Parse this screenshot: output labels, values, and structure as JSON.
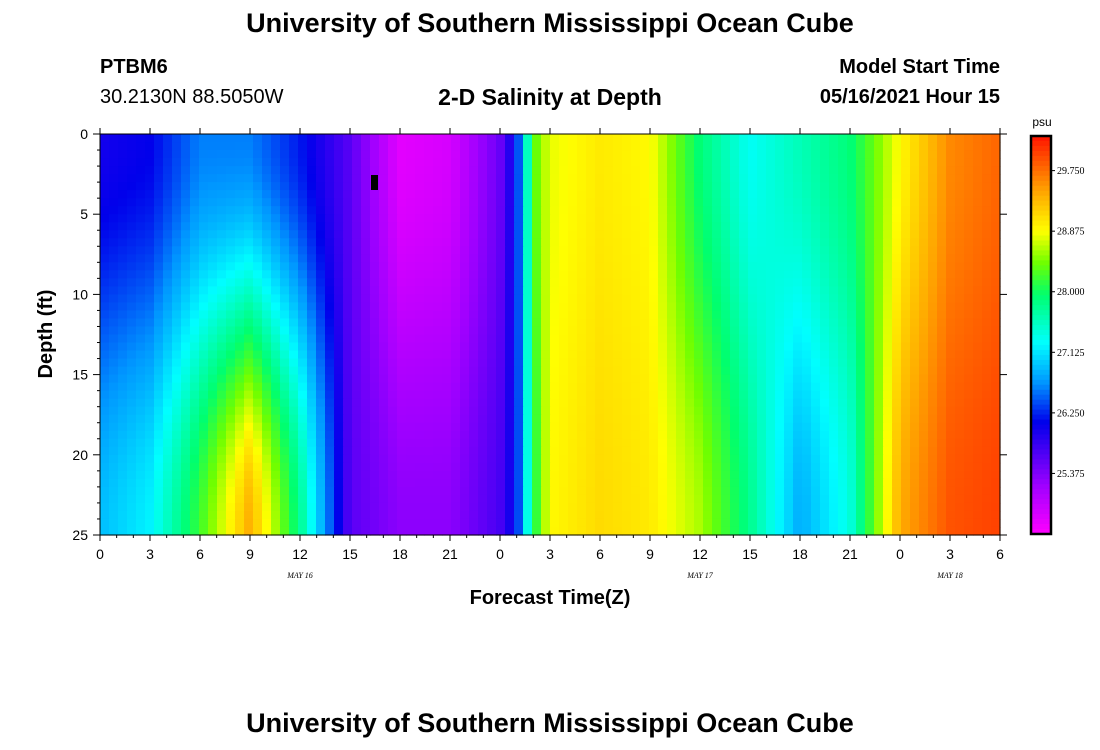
{
  "header": {
    "title": "University of Southern Mississippi Ocean Cube",
    "station_id": "PTBM6",
    "coords": "30.2130N  88.5050W",
    "plot_title": "2-D Salinity at Depth",
    "model_start_label": "Model Start Time",
    "model_start_value": "05/16/2021 Hour 15"
  },
  "footer": {
    "title": "University of Southern Mississippi Ocean Cube"
  },
  "chart_data": {
    "type": "heatmap",
    "title": "2-D Salinity at Depth",
    "xlabel": "Forecast Time(Z)",
    "ylabel": "Depth (ft)",
    "x_range_hours": [
      0,
      54
    ],
    "y_range_ft": [
      0,
      25
    ],
    "x_tick_labels": [
      "0",
      "3",
      "6",
      "9",
      "12",
      "15",
      "18",
      "21",
      "0",
      "3",
      "6",
      "9",
      "12",
      "15",
      "18",
      "21",
      "0",
      "3",
      "6"
    ],
    "y_tick_labels": [
      "0",
      "5",
      "10",
      "15",
      "20",
      "25"
    ],
    "date_labels": [
      {
        "label": "MAY 16",
        "hour": 12
      },
      {
        "label": "MAY 17",
        "hour": 36
      },
      {
        "label": "MAY 18",
        "hour": 51
      }
    ],
    "colorbar": {
      "unit": "psu",
      "min": 24.5,
      "max": 30.25,
      "tick_labels": [
        "29.750",
        "28.875",
        "28.000",
        "27.125",
        "26.250",
        "25.375"
      ],
      "tick_values": [
        29.75,
        28.875,
        28.0,
        27.125,
        26.25,
        25.375
      ]
    },
    "salinity_keyframes": [
      {
        "hour": 0,
        "shallow": 26.0,
        "deep": 26.9
      },
      {
        "hour": 3,
        "shallow": 26.1,
        "deep": 27.2
      },
      {
        "hour": 6,
        "shallow": 26.6,
        "deep": 28.2
      },
      {
        "hour": 9,
        "shallow": 26.6,
        "deep": 29.4
      },
      {
        "hour": 12,
        "shallow": 26.2,
        "deep": 27.8
      },
      {
        "hour": 15,
        "shallow": 25.6,
        "deep": 25.6
      },
      {
        "hour": 18,
        "shallow": 24.7,
        "deep": 25.3
      },
      {
        "hour": 21,
        "shallow": 24.8,
        "deep": 25.3
      },
      {
        "hour": 24,
        "shallow": 25.5,
        "deep": 25.7
      },
      {
        "hour": 25,
        "shallow": 26.2,
        "deep": 26.2
      },
      {
        "hour": 26,
        "shallow": 28.3,
        "deep": 28.0
      },
      {
        "hour": 27,
        "shallow": 28.8,
        "deep": 28.9
      },
      {
        "hour": 30,
        "shallow": 29.0,
        "deep": 29.1
      },
      {
        "hour": 33,
        "shallow": 28.9,
        "deep": 29.0
      },
      {
        "hour": 36,
        "shallow": 27.9,
        "deep": 28.6
      },
      {
        "hour": 39,
        "shallow": 27.3,
        "deep": 27.8
      },
      {
        "hour": 42,
        "shallow": 27.6,
        "deep": 26.8
      },
      {
        "hour": 45,
        "shallow": 27.9,
        "deep": 27.4
      },
      {
        "hour": 48,
        "shallow": 28.9,
        "deep": 29.4
      },
      {
        "hour": 51,
        "shallow": 29.6,
        "deep": 29.9
      },
      {
        "hour": 54,
        "shallow": 29.8,
        "deep": 30.0
      }
    ]
  }
}
